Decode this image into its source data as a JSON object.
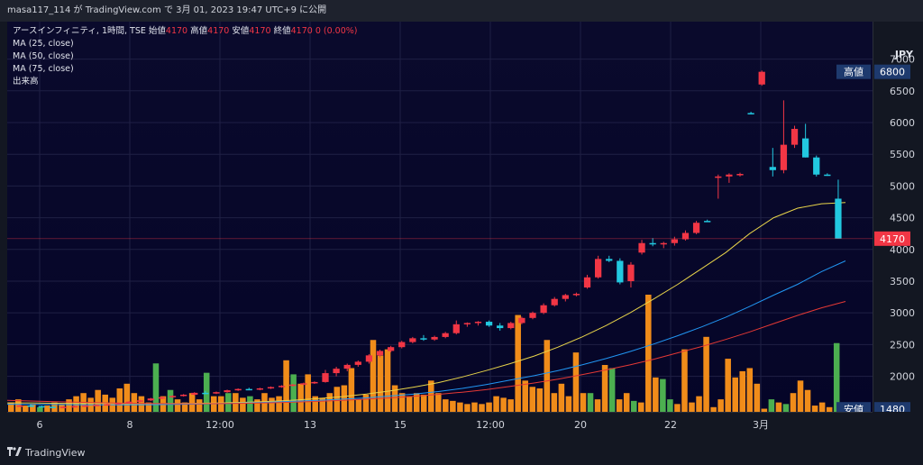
{
  "header": {
    "text": "masa117_114 が TradingView.com で 3月 01, 2023 19:47 UTC+9 に公開"
  },
  "legend": {
    "symbol": "アースインフィニティ, 1時間, TSE",
    "open_label": "始値",
    "open_value": "4170",
    "high_label": "高値",
    "high_value": "4170",
    "low_label": "安値",
    "low_value": "4170",
    "close_label": "終値",
    "close_value": "4170",
    "change": "0 (0.00%)",
    "ma25": "MA (25, close)",
    "ma50": "MA (50, close)",
    "ma75": "MA (75, close)",
    "volume": "出来高"
  },
  "currency": "JPY",
  "footer": {
    "brand": "TradingView",
    "logo_icon": "tradingview-logo-icon"
  },
  "chart_data": {
    "type": "candlestick",
    "x_tick_labels": [
      "6",
      "8",
      "12:00",
      "13",
      "15",
      "12:00",
      "20",
      "22",
      "3月"
    ],
    "y_ticks": [
      2000,
      2500,
      3000,
      3500,
      4000,
      4500,
      5000,
      5500,
      6000,
      6500,
      7000
    ],
    "ylim": [
      1440,
      7250
    ],
    "price_labels": [
      {
        "text": "高値",
        "value": "6800",
        "color": "#1e3a6e"
      },
      {
        "text": "",
        "value": "4170",
        "color": "#f23645"
      },
      {
        "text": "安値",
        "value": "1480",
        "color": "#1e3a6e"
      }
    ],
    "last_price": 4170,
    "colors": {
      "up": "#f23645",
      "down": "#22c8e0",
      "vol_orange": "#f08c1a",
      "vol_green": "#4caf50",
      "ma25": "#e8d44a",
      "ma50": "#2196f3",
      "ma75": "#e53935"
    },
    "candles": [
      [
        1540,
        1550,
        1530,
        1540
      ],
      [
        1540,
        1560,
        1520,
        1530
      ],
      [
        1530,
        1540,
        1510,
        1520
      ],
      [
        1520,
        1530,
        1500,
        1510
      ],
      [
        1510,
        1530,
        1500,
        1520
      ],
      [
        1520,
        1540,
        1510,
        1530
      ],
      [
        1530,
        1550,
        1520,
        1540
      ],
      [
        1540,
        1560,
        1530,
        1550
      ],
      [
        1550,
        1570,
        1540,
        1560
      ],
      [
        1560,
        1590,
        1550,
        1580
      ],
      [
        1580,
        1610,
        1570,
        1600
      ],
      [
        1600,
        1630,
        1590,
        1620
      ],
      [
        1620,
        1660,
        1610,
        1650
      ],
      [
        1650,
        1680,
        1640,
        1670
      ],
      [
        1670,
        1700,
        1660,
        1690
      ],
      [
        1690,
        1720,
        1680,
        1710
      ],
      [
        1710,
        1750,
        1700,
        1740
      ],
      [
        1740,
        1770,
        1720,
        1730
      ],
      [
        1730,
        1760,
        1720,
        1750
      ],
      [
        1750,
        1790,
        1740,
        1780
      ],
      [
        1780,
        1810,
        1770,
        1800
      ],
      [
        1800,
        1820,
        1780,
        1790
      ],
      [
        1790,
        1820,
        1780,
        1810
      ],
      [
        1810,
        1840,
        1800,
        1830
      ],
      [
        1830,
        1860,
        1820,
        1850
      ],
      [
        1850,
        1880,
        1840,
        1870
      ],
      [
        1870,
        1900,
        1860,
        1890
      ],
      [
        1890,
        1920,
        1880,
        1910
      ],
      [
        1910,
        2100,
        1900,
        2050
      ],
      [
        2050,
        2150,
        2000,
        2120
      ],
      [
        2120,
        2200,
        2080,
        2180
      ],
      [
        2180,
        2250,
        2150,
        2230
      ],
      [
        2230,
        2350,
        2200,
        2330
      ],
      [
        2330,
        2420,
        2300,
        2400
      ],
      [
        2400,
        2480,
        2380,
        2460
      ],
      [
        2460,
        2560,
        2440,
        2540
      ],
      [
        2540,
        2620,
        2520,
        2600
      ],
      [
        2600,
        2650,
        2560,
        2580
      ],
      [
        2580,
        2640,
        2560,
        2620
      ],
      [
        2620,
        2700,
        2600,
        2680
      ],
      [
        2680,
        2880,
        2660,
        2820
      ],
      [
        2820,
        2850,
        2780,
        2840
      ],
      [
        2840,
        2870,
        2800,
        2860
      ],
      [
        2860,
        2880,
        2780,
        2800
      ],
      [
        2800,
        2840,
        2720,
        2760
      ],
      [
        2760,
        2860,
        2740,
        2840
      ],
      [
        2840,
        2940,
        2820,
        2920
      ],
      [
        2920,
        3020,
        2900,
        3000
      ],
      [
        3000,
        3150,
        2980,
        3120
      ],
      [
        3120,
        3250,
        3100,
        3220
      ],
      [
        3220,
        3300,
        3180,
        3280
      ],
      [
        3280,
        3320,
        3260,
        3300
      ],
      [
        3400,
        3600,
        3380,
        3560
      ],
      [
        3560,
        3900,
        3540,
        3850
      ],
      [
        3850,
        3900,
        3800,
        3820
      ],
      [
        3820,
        3860,
        3450,
        3480
      ],
      [
        3500,
        3800,
        3400,
        3760
      ],
      [
        3950,
        4150,
        3920,
        4100
      ],
      [
        4100,
        4180,
        4050,
        4080
      ],
      [
        4080,
        4120,
        4020,
        4100
      ],
      [
        4100,
        4200,
        4060,
        4160
      ],
      [
        4160,
        4300,
        4140,
        4260
      ],
      [
        4260,
        4450,
        4240,
        4420
      ],
      [
        4450,
        4470,
        4430,
        4440
      ],
      [
        5140,
        5180,
        4800,
        5150
      ],
      [
        5150,
        5200,
        5050,
        5180
      ],
      [
        5180,
        5210,
        5150,
        5190
      ],
      [
        6150,
        6170,
        6130,
        6140
      ],
      [
        6600,
        6820,
        6580,
        6800
      ],
      [
        5300,
        5600,
        5150,
        5250
      ],
      [
        5250,
        6350,
        5200,
        5650
      ],
      [
        5650,
        5950,
        5600,
        5900
      ],
      [
        5750,
        5980,
        5450,
        5450
      ],
      [
        5450,
        5480,
        5150,
        5180
      ],
      [
        5180,
        5200,
        5160,
        5170
      ],
      [
        4800,
        5100,
        4170,
        4170
      ]
    ],
    "volume_unit": "relative",
    "volumes": [
      [
        6,
        "o"
      ],
      [
        8,
        "o"
      ],
      [
        4,
        "o"
      ],
      [
        5,
        "o"
      ],
      [
        3,
        "g"
      ],
      [
        4,
        "o"
      ],
      [
        6,
        "o"
      ],
      [
        5,
        "o"
      ],
      [
        8,
        "o"
      ],
      [
        10,
        "o"
      ],
      [
        12,
        "o"
      ],
      [
        9,
        "o"
      ],
      [
        14,
        "o"
      ],
      [
        11,
        "o"
      ],
      [
        9,
        "o"
      ],
      [
        15,
        "o"
      ],
      [
        18,
        "o"
      ],
      [
        12,
        "o"
      ],
      [
        10,
        "o"
      ],
      [
        6,
        "o"
      ],
      [
        31,
        "g"
      ],
      [
        10,
        "o"
      ],
      [
        14,
        "g"
      ],
      [
        8,
        "o"
      ],
      [
        6,
        "o"
      ],
      [
        12,
        "o"
      ],
      [
        8,
        "o"
      ],
      [
        25,
        "g"
      ],
      [
        10,
        "o"
      ],
      [
        10,
        "o"
      ],
      [
        12,
        "g"
      ],
      [
        12,
        "o"
      ],
      [
        9,
        "o"
      ],
      [
        10,
        "g"
      ],
      [
        8,
        "o"
      ],
      [
        12,
        "o"
      ],
      [
        9,
        "o"
      ],
      [
        10,
        "o"
      ],
      [
        33,
        "o"
      ],
      [
        24,
        "g"
      ],
      [
        18,
        "o"
      ],
      [
        24,
        "o"
      ],
      [
        10,
        "o"
      ],
      [
        9,
        "o"
      ],
      [
        12,
        "o"
      ],
      [
        16,
        "o"
      ],
      [
        17,
        "o"
      ],
      [
        28,
        "o"
      ],
      [
        8,
        "o"
      ],
      [
        11,
        "o"
      ],
      [
        46,
        "o"
      ],
      [
        36,
        "o"
      ],
      [
        40,
        "o"
      ],
      [
        17,
        "o"
      ],
      [
        12,
        "o"
      ],
      [
        10,
        "o"
      ],
      [
        12,
        "o"
      ],
      [
        11,
        "o"
      ],
      [
        20,
        "o"
      ],
      [
        12,
        "o"
      ],
      [
        8,
        "o"
      ],
      [
        7,
        "o"
      ],
      [
        6,
        "o"
      ],
      [
        5,
        "o"
      ],
      [
        6,
        "o"
      ],
      [
        5,
        "o"
      ],
      [
        6,
        "o"
      ],
      [
        10,
        "o"
      ],
      [
        9,
        "o"
      ],
      [
        8,
        "o"
      ],
      [
        62,
        "o"
      ],
      [
        20,
        "o"
      ],
      [
        16,
        "o"
      ],
      [
        15,
        "o"
      ],
      [
        46,
        "o"
      ],
      [
        12,
        "o"
      ],
      [
        18,
        "o"
      ],
      [
        10,
        "o"
      ],
      [
        38,
        "o"
      ],
      [
        12,
        "o"
      ],
      [
        12,
        "g"
      ],
      [
        8,
        "o"
      ],
      [
        30,
        "o"
      ],
      [
        28,
        "g"
      ],
      [
        8,
        "o"
      ],
      [
        12,
        "o"
      ],
      [
        7,
        "g"
      ],
      [
        6,
        "o"
      ],
      [
        75,
        "o"
      ],
      [
        22,
        "o"
      ],
      [
        21,
        "g"
      ],
      [
        8,
        "g"
      ],
      [
        5,
        "o"
      ],
      [
        40,
        "o"
      ],
      [
        6,
        "o"
      ],
      [
        10,
        "o"
      ],
      [
        48,
        "o"
      ],
      [
        3,
        "o"
      ],
      [
        8,
        "o"
      ],
      [
        34,
        "o"
      ],
      [
        22,
        "o"
      ],
      [
        26,
        "o"
      ],
      [
        28,
        "o"
      ],
      [
        18,
        "o"
      ],
      [
        2,
        "o"
      ],
      [
        8,
        "g"
      ],
      [
        6,
        "o"
      ],
      [
        5,
        "g"
      ],
      [
        12,
        "o"
      ],
      [
        20,
        "o"
      ],
      [
        14,
        "o"
      ],
      [
        4,
        "o"
      ],
      [
        6,
        "o"
      ],
      [
        3,
        "o"
      ],
      [
        44,
        "g"
      ],
      [
        3,
        "g"
      ]
    ],
    "ma25": [
      1580,
      1580,
      1575,
      1572,
      1570,
      1568,
      1568,
      1570,
      1575,
      1580,
      1590,
      1605,
      1625,
      1650,
      1680,
      1720,
      1770,
      1830,
      1900,
      1990,
      2090,
      2200,
      2320,
      2460,
      2620,
      2800,
      3000,
      3220,
      3450,
      3700,
      3950,
      4250,
      4500,
      4650,
      4720,
      4740
    ],
    "ma50": [
      1560,
      1558,
      1555,
      1552,
      1550,
      1550,
      1552,
      1556,
      1562,
      1570,
      1580,
      1592,
      1606,
      1622,
      1640,
      1660,
      1690,
      1720,
      1760,
      1810,
      1870,
      1940,
      2010,
      2090,
      2180,
      2280,
      2390,
      2510,
      2640,
      2780,
      2930,
      3100,
      3280,
      3450,
      3650,
      3820
    ],
    "ma75": [
      1620,
      1610,
      1600,
      1590,
      1582,
      1575,
      1570,
      1568,
      1568,
      1570,
      1575,
      1582,
      1592,
      1605,
      1620,
      1640,
      1660,
      1685,
      1715,
      1750,
      1790,
      1840,
      1895,
      1955,
      2025,
      2100,
      2180,
      2270,
      2370,
      2470,
      2580,
      2700,
      2830,
      2960,
      3080,
      3180
    ]
  }
}
